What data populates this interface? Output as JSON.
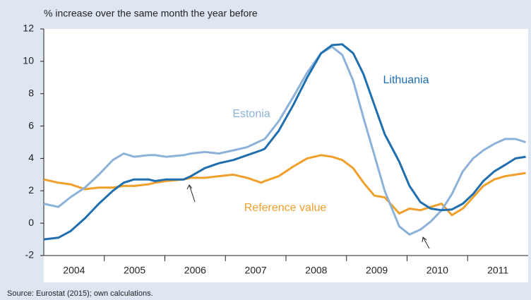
{
  "chart_data": {
    "type": "line",
    "title": "% increase over the same month the year before",
    "source": "Source: Eurostat (2015); own calculations.",
    "x": [
      2004.0,
      2004.24,
      2004.44,
      2004.68,
      2004.91,
      2005.14,
      2005.32,
      2005.49,
      2005.73,
      2005.84,
      2006.02,
      2006.31,
      2006.43,
      2006.66,
      2006.89,
      2007.13,
      2007.36,
      2007.59,
      2007.65,
      2007.88,
      2008.12,
      2008.35,
      2008.58,
      2008.76,
      2008.93,
      2009.11,
      2009.28,
      2009.46,
      2009.63,
      2009.87,
      2010.04,
      2010.22,
      2010.39,
      2010.57,
      2010.74,
      2010.92,
      2011.09,
      2011.26,
      2011.44,
      2011.62,
      2011.79,
      2011.96
    ],
    "series": [
      {
        "name": "Reference value",
        "color": "#f0a02a",
        "values": [
          2.7,
          2.5,
          2.4,
          2.1,
          2.2,
          2.2,
          2.3,
          2.3,
          2.4,
          2.5,
          2.6,
          2.7,
          2.8,
          2.8,
          2.9,
          3.0,
          2.8,
          2.5,
          2.6,
          2.9,
          3.5,
          4.0,
          4.2,
          4.1,
          3.9,
          3.4,
          2.5,
          1.7,
          1.6,
          0.6,
          0.9,
          0.8,
          1.0,
          1.2,
          0.5,
          0.9,
          1.6,
          2.3,
          2.7,
          2.9,
          3.0,
          3.1
        ]
      },
      {
        "name": "Estonia",
        "color": "#8cb2da",
        "values": [
          1.2,
          1.0,
          1.6,
          2.2,
          3.0,
          3.9,
          4.3,
          4.1,
          4.2,
          4.2,
          4.1,
          4.2,
          4.3,
          4.4,
          4.3,
          4.5,
          4.7,
          5.1,
          5.2,
          6.3,
          7.8,
          9.3,
          10.5,
          10.9,
          10.4,
          8.8,
          6.5,
          4.2,
          2.0,
          -0.2,
          -0.7,
          -0.4,
          0.1,
          0.8,
          1.8,
          3.2,
          4.0,
          4.5,
          4.9,
          5.2,
          5.2,
          5.0
        ]
      },
      {
        "name": "Lithuania",
        "color": "#1f6eae",
        "values": [
          -1.0,
          -0.9,
          -0.5,
          0.3,
          1.2,
          2.0,
          2.5,
          2.7,
          2.7,
          2.6,
          2.7,
          2.7,
          2.9,
          3.4,
          3.7,
          3.9,
          4.2,
          4.5,
          4.6,
          5.7,
          7.3,
          9.0,
          10.5,
          11.0,
          11.05,
          10.5,
          9.2,
          7.3,
          5.5,
          3.8,
          2.3,
          1.3,
          0.9,
          0.8,
          0.85,
          1.2,
          1.8,
          2.6,
          3.2,
          3.6,
          4.0,
          4.1
        ]
      }
    ],
    "xlim": [
      2004,
      2012
    ],
    "xticks": [
      {
        "value": 2004,
        "label": "2004"
      },
      {
        "value": 2005,
        "label": "2005"
      },
      {
        "value": 2006,
        "label": "2006"
      },
      {
        "value": 2007,
        "label": "2007"
      },
      {
        "value": 2008,
        "label": "2008"
      },
      {
        "value": 2009,
        "label": "2009"
      },
      {
        "value": 2010,
        "label": "2010"
      },
      {
        "value": 2011,
        "label": "2011"
      }
    ],
    "ylim": [
      -2,
      12
    ],
    "yticks": [
      -2,
      0,
      2,
      4,
      6,
      8,
      10,
      12
    ],
    "grid": false
  }
}
